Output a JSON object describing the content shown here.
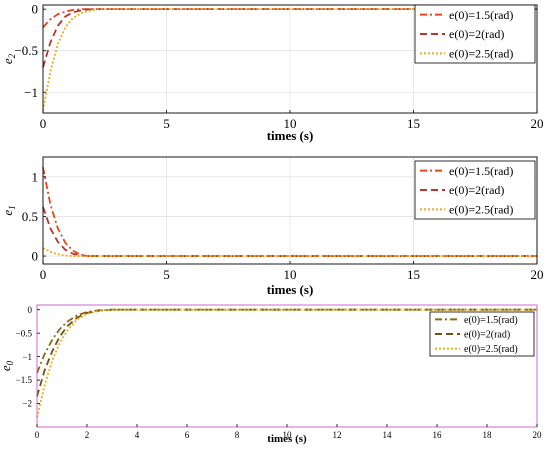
{
  "chart_data": [
    {
      "type": "line",
      "xlabel": "times (s)",
      "ylabel": "e2",
      "xlim": [
        0,
        20
      ],
      "ylim": [
        -1.25,
        0.05
      ],
      "xticks": [
        "0",
        "5",
        "10",
        "15",
        "20"
      ],
      "yticks": [
        "0",
        "-0.5",
        "-1"
      ],
      "grid": true,
      "legend_position": "top-right",
      "series": [
        {
          "name": "e(0)=1.5(rad)",
          "color": "#e8451c",
          "dash": "dash-dot",
          "x": [
            0,
            0.3,
            0.6,
            0.9,
            1.2,
            1.6,
            2.0,
            3.0,
            20
          ],
          "y": [
            -0.22,
            -0.12,
            -0.06,
            -0.03,
            -0.01,
            0,
            0,
            0,
            0
          ]
        },
        {
          "name": "e(0)=2(rad)",
          "color": "#b5362a",
          "dash": "dashed",
          "x": [
            0,
            0.3,
            0.6,
            0.9,
            1.2,
            1.6,
            2.0,
            3.0,
            20
          ],
          "y": [
            -0.7,
            -0.4,
            -0.2,
            -0.09,
            -0.04,
            -0.01,
            0,
            0,
            0
          ]
        },
        {
          "name": "e(0)=2.5(rad)",
          "color": "#f0a91c",
          "dash": "dotted",
          "x": [
            0,
            0.3,
            0.6,
            0.9,
            1.2,
            1.6,
            2.0,
            2.4,
            3.0,
            20
          ],
          "y": [
            -1.22,
            -0.75,
            -0.42,
            -0.22,
            -0.11,
            -0.04,
            -0.01,
            0,
            0,
            0
          ]
        }
      ]
    },
    {
      "type": "line",
      "xlabel": "times (s)",
      "ylabel": "e1",
      "xlim": [
        0,
        20
      ],
      "ylim": [
        -0.1,
        1.25
      ],
      "xticks": [
        "0",
        "5",
        "10",
        "15",
        "20"
      ],
      "yticks": [
        "0",
        "0.5",
        "1"
      ],
      "grid": true,
      "legend_position": "top-right",
      "series": [
        {
          "name": "e(0)=1.5(rad)",
          "color": "#e8451c",
          "dash": "dash-dot",
          "x": [
            0,
            0.3,
            0.6,
            0.9,
            1.2,
            1.5,
            1.8,
            2.2,
            20
          ],
          "y": [
            1.12,
            0.65,
            0.35,
            0.17,
            0.07,
            0.02,
            0,
            0,
            0
          ]
        },
        {
          "name": "e(0)=2(rad)",
          "color": "#b5362a",
          "dash": "dashed",
          "x": [
            0,
            0.3,
            0.6,
            0.9,
            1.2,
            1.5,
            1.9,
            20
          ],
          "y": [
            0.62,
            0.35,
            0.18,
            0.08,
            0.03,
            0.01,
            0,
            0
          ]
        },
        {
          "name": "e(0)=2.5(rad)",
          "color": "#f0a91c",
          "dash": "dotted",
          "x": [
            0,
            0.4,
            0.8,
            1.2,
            20
          ],
          "y": [
            0.1,
            0.04,
            0.01,
            0,
            0
          ]
        }
      ]
    },
    {
      "type": "line",
      "xlabel": "times (s)",
      "ylabel": "e0",
      "xlim": [
        0,
        20
      ],
      "ylim": [
        -2.5,
        0.1
      ],
      "xticks": [
        "0",
        "2",
        "4",
        "6",
        "8",
        "10",
        "12",
        "14",
        "16",
        "18",
        "20"
      ],
      "yticks": [
        "0",
        "-0.5",
        "-1",
        "-1.5",
        "-2"
      ],
      "grid": false,
      "legend_position": "top-right",
      "series": [
        {
          "name": "e(0)=1.5(rad)",
          "color": "#8a6a18",
          "dash": "dash-dot",
          "x": [
            0,
            0.3,
            0.6,
            0.9,
            1.2,
            1.6,
            2.0,
            2.5,
            3.0,
            20
          ],
          "y": [
            -1.35,
            -0.95,
            -0.65,
            -0.42,
            -0.26,
            -0.12,
            -0.05,
            -0.01,
            0,
            0
          ]
        },
        {
          "name": "e(0)=2(rad)",
          "color": "#6e5318",
          "dash": "dashed",
          "x": [
            0,
            0.3,
            0.6,
            0.9,
            1.2,
            1.6,
            2.0,
            2.5,
            3.0,
            20
          ],
          "y": [
            -1.85,
            -1.3,
            -0.9,
            -0.58,
            -0.36,
            -0.17,
            -0.07,
            -0.02,
            0,
            0
          ]
        },
        {
          "name": "e(0)=2.5(rad)",
          "color": "#e3b513",
          "dash": "dotted",
          "x": [
            0,
            0.3,
            0.6,
            0.9,
            1.2,
            1.6,
            2.0,
            2.5,
            3.0,
            20
          ],
          "y": [
            -2.3,
            -1.62,
            -1.1,
            -0.72,
            -0.45,
            -0.21,
            -0.09,
            -0.02,
            0,
            0
          ]
        }
      ]
    }
  ]
}
